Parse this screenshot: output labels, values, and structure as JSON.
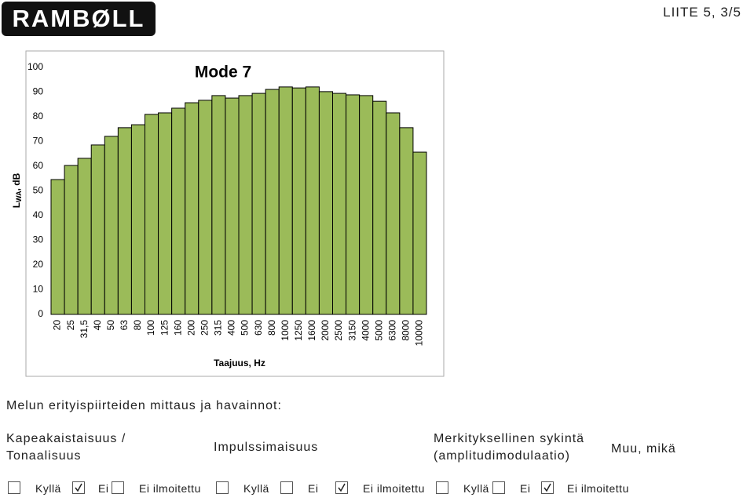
{
  "header": {
    "logo": "RAMBØLL",
    "page_label": "LIITE 5, 3/5"
  },
  "chart_data": {
    "type": "bar",
    "title": "Mode 7",
    "x_label": "Taajuus, Hz",
    "y_label_parts": [
      "L",
      "WA",
      ", dB"
    ],
    "categories": [
      "20",
      "25",
      "31,5",
      "40",
      "50",
      "63",
      "80",
      "100",
      "125",
      "160",
      "200",
      "250",
      "315",
      "400",
      "500",
      "630",
      "800",
      "1000",
      "1250",
      "1600",
      "2000",
      "2500",
      "3150",
      "4000",
      "5000",
      "6300",
      "8000",
      "10000"
    ],
    "values": [
      54.6,
      60.3,
      63.2,
      68.6,
      72.1,
      75.6,
      76.8,
      81.0,
      81.6,
      83.5,
      85.7,
      86.7,
      88.6,
      87.6,
      88.6,
      89.5,
      91.1,
      92.1,
      91.7,
      92.1,
      90.2,
      89.5,
      88.9,
      88.6,
      86.3,
      81.6,
      75.6,
      65.7
    ],
    "color": "#9bbb59",
    "ylim": [
      0,
      100
    ],
    "yticks": [
      0,
      10,
      20,
      30,
      40,
      50,
      60,
      70,
      80,
      90,
      100
    ],
    "grid": false
  },
  "form": {
    "title": "Melun erityispiirteiden mittaus ja havainnot:",
    "headings": [
      [
        "Kapeakaistaisuus /",
        "Tonaalisuus"
      ],
      [
        "Impulssimaisuus"
      ],
      [
        "Merkityksellinen sykintä",
        "(amplitudimodulaatio)"
      ],
      [
        "Muu, mikä"
      ]
    ],
    "groups": [
      {
        "options": [
          {
            "label": "Kyllä",
            "checked": false
          },
          {
            "label": "Ei",
            "checked": true
          },
          {
            "label": "Ei ilmoitettu",
            "checked": false
          }
        ]
      },
      {
        "options": [
          {
            "label": "Kyllä",
            "checked": false
          },
          {
            "label": "Ei",
            "checked": false
          },
          {
            "label": "Ei ilmoitettu",
            "checked": true
          }
        ]
      },
      {
        "options": [
          {
            "label": "Kyllä",
            "checked": false
          },
          {
            "label": "Ei",
            "checked": false
          },
          {
            "label": "Ei ilmoitettu",
            "checked": true
          }
        ]
      }
    ]
  }
}
